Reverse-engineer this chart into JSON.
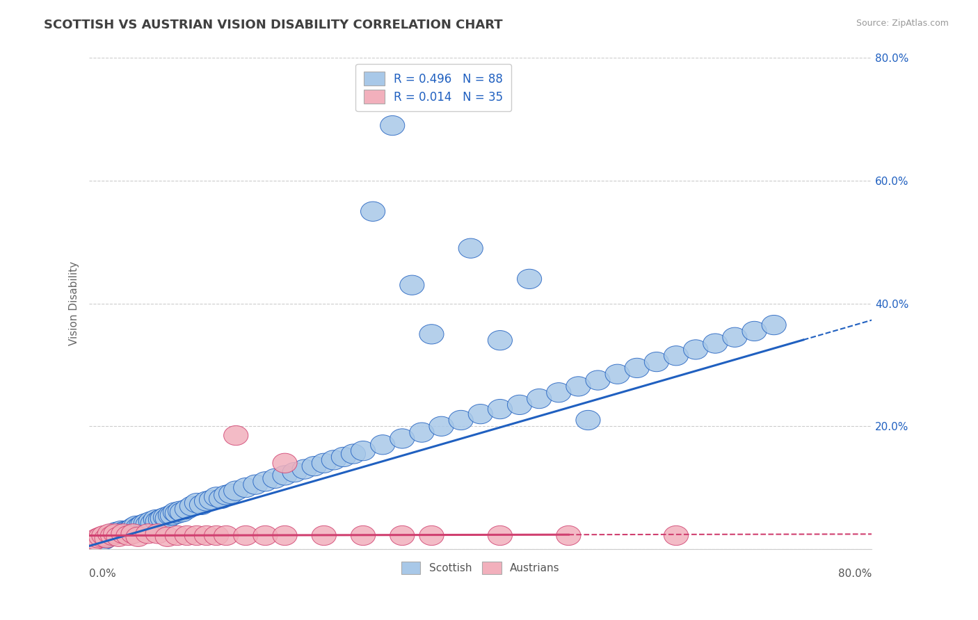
{
  "title": "SCOTTISH VS AUSTRIAN VISION DISABILITY CORRELATION CHART",
  "source": "Source: ZipAtlas.com",
  "ylabel": "Vision Disability",
  "xlim": [
    0,
    0.8
  ],
  "ylim": [
    0,
    0.8
  ],
  "legend_R1": "R = 0.496",
  "legend_N1": "N = 88",
  "legend_R2": "R = 0.014",
  "legend_N2": "N = 35",
  "scottish_color": "#A8C8E8",
  "austrian_color": "#F2B0BC",
  "line_scottish": "#2060C0",
  "line_austrian": "#D04070",
  "background_color": "#FFFFFF",
  "grid_color": "#CCCCCC",
  "title_color": "#404040",
  "legend_text_color": "#2060C0",
  "sc_slope": 0.46,
  "sc_intercept": 0.005,
  "au_slope": 0.003,
  "au_intercept": 0.022,
  "scottish_x": [
    0.005,
    0.008,
    0.01,
    0.012,
    0.015,
    0.018,
    0.02,
    0.022,
    0.025,
    0.028,
    0.03,
    0.033,
    0.035,
    0.038,
    0.04,
    0.043,
    0.045,
    0.048,
    0.05,
    0.053,
    0.055,
    0.058,
    0.06,
    0.063,
    0.065,
    0.068,
    0.07,
    0.073,
    0.075,
    0.078,
    0.08,
    0.083,
    0.085,
    0.088,
    0.09,
    0.093,
    0.095,
    0.1,
    0.105,
    0.11,
    0.115,
    0.12,
    0.125,
    0.13,
    0.135,
    0.14,
    0.145,
    0.15,
    0.16,
    0.17,
    0.18,
    0.19,
    0.2,
    0.21,
    0.22,
    0.23,
    0.24,
    0.25,
    0.26,
    0.27,
    0.28,
    0.3,
    0.32,
    0.34,
    0.36,
    0.38,
    0.4,
    0.42,
    0.44,
    0.46,
    0.48,
    0.5,
    0.52,
    0.54,
    0.56,
    0.58,
    0.6,
    0.62,
    0.64,
    0.66,
    0.68,
    0.7,
    0.45,
    0.39,
    0.51,
    0.35,
    0.29,
    0.31,
    0.42,
    0.33
  ],
  "scottish_y": [
    0.01,
    0.015,
    0.012,
    0.018,
    0.015,
    0.018,
    0.02,
    0.022,
    0.025,
    0.028,
    0.025,
    0.03,
    0.028,
    0.03,
    0.03,
    0.032,
    0.035,
    0.038,
    0.035,
    0.038,
    0.04,
    0.042,
    0.04,
    0.045,
    0.042,
    0.048,
    0.045,
    0.048,
    0.05,
    0.052,
    0.05,
    0.055,
    0.055,
    0.06,
    0.058,
    0.062,
    0.06,
    0.065,
    0.07,
    0.075,
    0.072,
    0.078,
    0.08,
    0.085,
    0.082,
    0.088,
    0.09,
    0.095,
    0.1,
    0.105,
    0.11,
    0.115,
    0.12,
    0.125,
    0.13,
    0.135,
    0.14,
    0.145,
    0.15,
    0.155,
    0.16,
    0.17,
    0.18,
    0.19,
    0.2,
    0.21,
    0.22,
    0.228,
    0.235,
    0.245,
    0.255,
    0.265,
    0.275,
    0.285,
    0.295,
    0.305,
    0.315,
    0.325,
    0.335,
    0.345,
    0.355,
    0.365,
    0.44,
    0.49,
    0.21,
    0.35,
    0.55,
    0.69,
    0.34,
    0.43
  ],
  "austrian_x": [
    0.003,
    0.006,
    0.009,
    0.012,
    0.015,
    0.018,
    0.021,
    0.024,
    0.027,
    0.03,
    0.035,
    0.04,
    0.045,
    0.05,
    0.06,
    0.07,
    0.08,
    0.09,
    0.1,
    0.11,
    0.12,
    0.13,
    0.14,
    0.16,
    0.18,
    0.2,
    0.24,
    0.28,
    0.35,
    0.42,
    0.49,
    0.2,
    0.15,
    0.32,
    0.6
  ],
  "austrian_y": [
    0.012,
    0.015,
    0.018,
    0.02,
    0.022,
    0.018,
    0.025,
    0.022,
    0.025,
    0.02,
    0.025,
    0.022,
    0.025,
    0.02,
    0.025,
    0.025,
    0.02,
    0.022,
    0.022,
    0.022,
    0.022,
    0.022,
    0.022,
    0.022,
    0.022,
    0.022,
    0.022,
    0.022,
    0.022,
    0.022,
    0.022,
    0.14,
    0.185,
    0.022,
    0.022
  ]
}
